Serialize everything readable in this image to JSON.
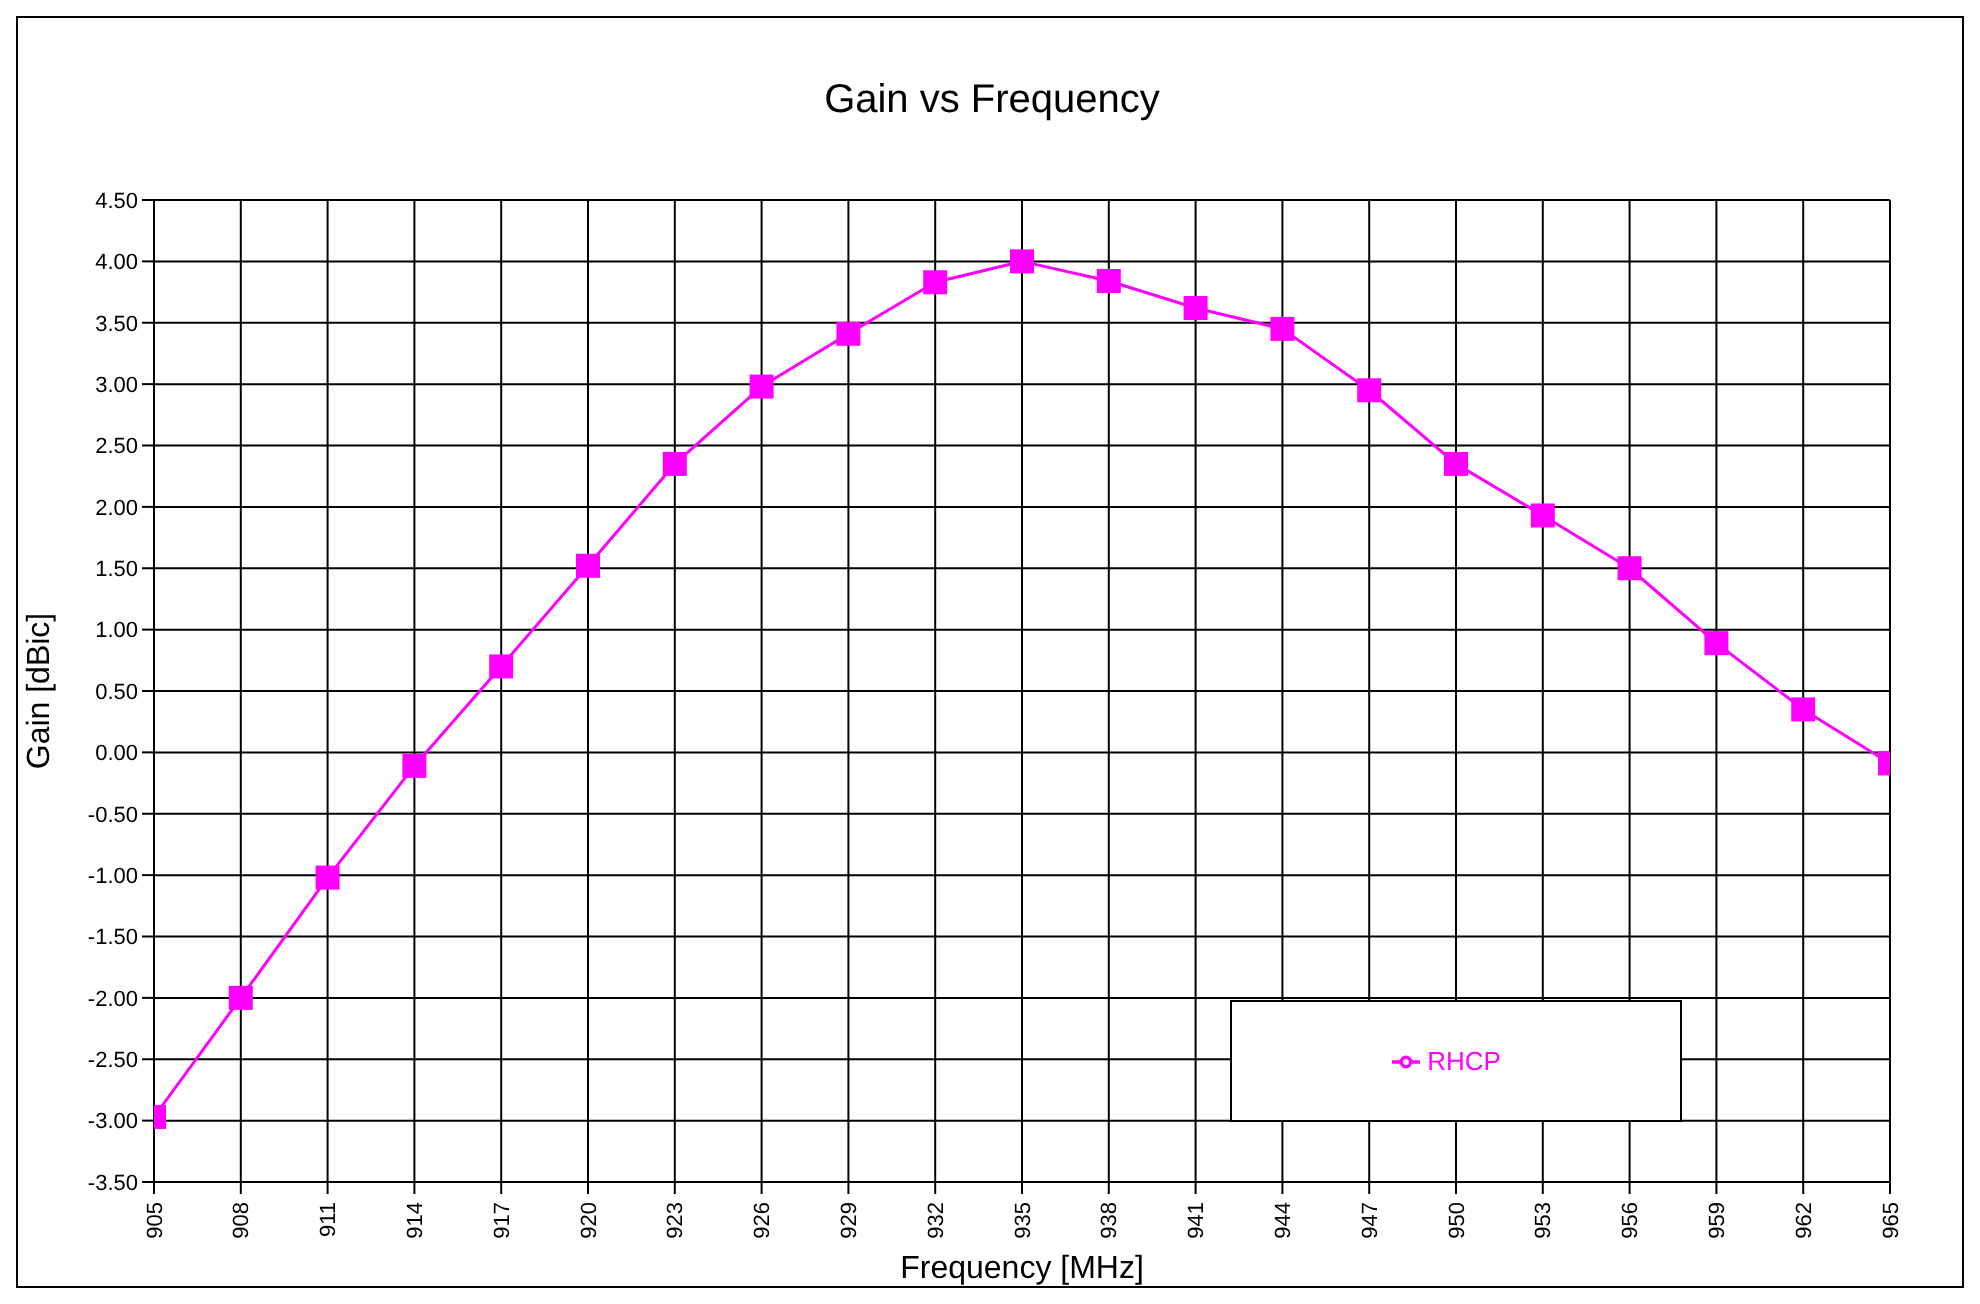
{
  "chart_data": {
    "type": "line",
    "title": "Gain  vs Frequency",
    "xlabel": "Frequency [MHz]",
    "ylabel": "Gain [dBic]",
    "x": [
      905,
      908,
      911,
      914,
      917,
      920,
      923,
      926,
      929,
      932,
      935,
      938,
      941,
      944,
      947,
      950,
      953,
      956,
      959,
      962,
      965
    ],
    "series": [
      {
        "name": "RHCP",
        "color": "#ff00ff",
        "values": [
          -2.97,
          -2.0,
          -1.02,
          -0.11,
          0.7,
          1.52,
          2.35,
          2.98,
          3.41,
          3.83,
          4.0,
          3.84,
          3.62,
          3.45,
          2.95,
          2.35,
          1.93,
          1.5,
          0.89,
          0.35,
          -0.09
        ]
      }
    ],
    "xlim": [
      905,
      965
    ],
    "xticks": [
      905,
      908,
      911,
      914,
      917,
      920,
      923,
      926,
      929,
      932,
      935,
      938,
      941,
      944,
      947,
      950,
      953,
      956,
      959,
      962,
      965
    ],
    "ylim": [
      -3.5,
      4.5
    ],
    "yticks": [
      {
        "value": -3.5,
        "label": "-3.50"
      },
      {
        "value": -3,
        "label": "-3.00"
      },
      {
        "value": -2.5,
        "label": "-2.50"
      },
      {
        "value": -2,
        "label": "-2.00"
      },
      {
        "value": -1.5,
        "label": "-1.50"
      },
      {
        "value": -1,
        "label": "-1.00"
      },
      {
        "value": -0.5,
        "label": "-0.50"
      },
      {
        "value": 0,
        "label": "0.00"
      },
      {
        "value": 0.5,
        "label": "0.50"
      },
      {
        "value": 1,
        "label": "1.00"
      },
      {
        "value": 1.5,
        "label": "1.50"
      },
      {
        "value": 2,
        "label": "2.00"
      },
      {
        "value": 2.5,
        "label": "2.50"
      },
      {
        "value": 3,
        "label": "3.00"
      },
      {
        "value": 3.5,
        "label": "3.50"
      },
      {
        "value": 4,
        "label": "4.00"
      },
      {
        "value": 4.5,
        "label": "4.50"
      }
    ],
    "grid": true,
    "legend": "bottom right",
    "marker": "square",
    "line_style": "solid"
  }
}
